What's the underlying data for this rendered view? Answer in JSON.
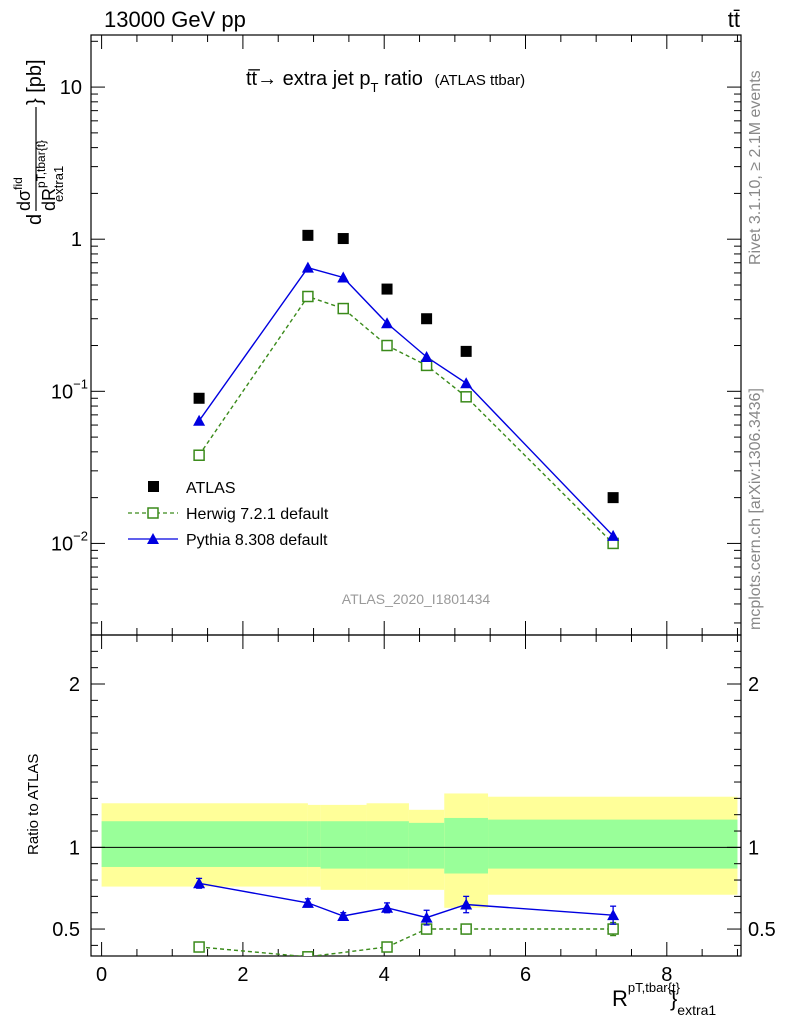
{
  "header": {
    "left": "13000 GeV pp",
    "right": "tt̄"
  },
  "side_labels": {
    "rivet": "Rivet 3.1.10, ≥ 2.1M events",
    "mcplots": "mcplots.cern.ch [arXiv:1306.3436]"
  },
  "chart_data": [
    {
      "type": "line",
      "title": "tt̅→ extra jet p",
      "title_sub": "T",
      "title_tail": " ratio",
      "title_small": "(ATLAS ttbar)",
      "ylabel_parts": {
        "d": "d",
        "num": "dσ",
        "num_sup": "fid",
        "den": "dR",
        "den_sup": "pT,tbar{t}",
        "den_sub": "extra1",
        "unit": "} [pb]"
      },
      "yscale": "log",
      "ylim": [
        0.0025,
        22
      ],
      "xlim": [
        -0.15,
        9.05
      ],
      "yticks": [
        {
          "v": 10,
          "base": "10",
          "exp": ""
        },
        {
          "v": 1,
          "base": "1",
          "exp": ""
        },
        {
          "v": 0.1,
          "base": "10",
          "exp": "−1"
        },
        {
          "v": 0.01,
          "base": "10",
          "exp": "−2"
        }
      ],
      "watermark": "ATLAS_2020_I1801434",
      "legend_position": "lower-left",
      "series": [
        {
          "name": "ATLAS",
          "style": "square",
          "color": "#000000",
          "x": [
            1.38,
            2.92,
            3.42,
            4.04,
            4.6,
            5.16,
            7.24
          ],
          "y": [
            0.09,
            1.06,
            1.01,
            0.47,
            0.3,
            0.183,
            0.02
          ]
        },
        {
          "name": "Herwig 7.2.1 default",
          "style": "open-square-dashed",
          "color": "#3a8a1a",
          "x": [
            1.38,
            2.92,
            3.42,
            4.04,
            4.6,
            5.16,
            7.24
          ],
          "y": [
            0.038,
            0.42,
            0.35,
            0.2,
            0.148,
            0.092,
            0.01
          ]
        },
        {
          "name": "Pythia 8.308 default",
          "style": "triangle-solid",
          "color": "#0000e0",
          "x": [
            1.38,
            2.92,
            3.42,
            4.04,
            4.6,
            5.16,
            7.24
          ],
          "y": [
            0.064,
            0.65,
            0.56,
            0.28,
            0.168,
            0.113,
            0.0112
          ]
        }
      ]
    },
    {
      "type": "line",
      "ylabel": "Ratio to ATLAS",
      "xlabel": "R",
      "xlabel_sup": "pT,tbar{t}",
      "xlabel_sub": "extra1",
      "ylim": [
        0.335,
        2.3
      ],
      "xlim": [
        -0.15,
        9.05
      ],
      "yticks": [
        0.5,
        1,
        2
      ],
      "xticks": [
        0,
        2,
        4,
        6,
        8
      ],
      "bands": [
        {
          "x0": 0.0,
          "x1": 2.92,
          "inner": [
            0.88,
            1.16
          ],
          "outer": [
            0.76,
            1.27
          ]
        },
        {
          "x0": 2.92,
          "x1": 3.1,
          "inner": [
            0.88,
            1.16
          ],
          "outer": [
            0.76,
            1.26
          ]
        },
        {
          "x0": 3.1,
          "x1": 3.75,
          "inner": [
            0.87,
            1.16
          ],
          "outer": [
            0.74,
            1.26
          ]
        },
        {
          "x0": 3.75,
          "x1": 4.35,
          "inner": [
            0.87,
            1.16
          ],
          "outer": [
            0.74,
            1.27
          ]
        },
        {
          "x0": 4.35,
          "x1": 4.85,
          "inner": [
            0.87,
            1.15
          ],
          "outer": [
            0.74,
            1.23
          ]
        },
        {
          "x0": 4.85,
          "x1": 5.47,
          "inner": [
            0.84,
            1.18
          ],
          "outer": [
            0.63,
            1.33
          ]
        },
        {
          "x0": 5.47,
          "x1": 9.0,
          "inner": [
            0.87,
            1.17
          ],
          "outer": [
            0.71,
            1.31
          ]
        }
      ],
      "series": [
        {
          "name": "Herwig 7.2.1 default",
          "color": "#3a8a1a",
          "x": [
            1.38,
            2.92,
            4.04,
            4.6,
            5.16,
            7.24
          ],
          "y": [
            0.39,
            0.33,
            0.39,
            0.5,
            0.5,
            0.5
          ],
          "err": [
            0.015,
            0.015,
            0.02,
            0.03,
            0.03,
            0.04
          ]
        },
        {
          "name": "Pythia 8.308 default",
          "color": "#0000e0",
          "x": [
            1.38,
            2.92,
            3.42,
            4.04,
            4.6,
            5.16,
            7.24
          ],
          "y": [
            0.78,
            0.66,
            0.58,
            0.63,
            0.57,
            0.65,
            0.585
          ],
          "err": [
            0.03,
            0.025,
            0.02,
            0.03,
            0.045,
            0.05,
            0.055
          ]
        }
      ]
    }
  ]
}
